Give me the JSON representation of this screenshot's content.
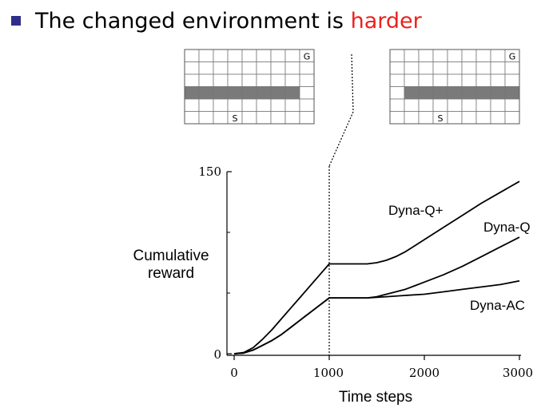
{
  "slide": {
    "title_prefix": "The changed environment is ",
    "title_highlight": "harder",
    "bullet_color": "#2e2e8a",
    "highlight_color": "#e8231e"
  },
  "mazes": [
    {
      "rows": 6,
      "cols": 9,
      "goal_label": "G",
      "start_label": "S",
      "goal_cell": [
        0,
        8
      ],
      "start_cell": [
        5,
        3
      ],
      "wall_row": 3,
      "wall_cols": [
        0,
        1,
        2,
        3,
        4,
        5,
        6,
        7
      ]
    },
    {
      "rows": 6,
      "cols": 9,
      "goal_label": "G",
      "start_label": "S",
      "goal_cell": [
        0,
        8
      ],
      "start_cell": [
        5,
        3
      ],
      "wall_row": 3,
      "wall_cols": [
        1,
        2,
        3,
        4,
        5,
        6,
        7,
        8
      ]
    }
  ],
  "chart_data": {
    "type": "line",
    "title": "",
    "xlabel": "Time steps",
    "ylabel_lines": [
      "Cumulative",
      "reward"
    ],
    "xlim": [
      0,
      3000
    ],
    "ylim": [
      0,
      150
    ],
    "xticks": [
      0,
      1000,
      2000,
      3000
    ],
    "yticks": [
      0,
      150
    ],
    "y_minor_ticks": [
      50,
      100
    ],
    "change_point": 1000,
    "grid": false,
    "series": [
      {
        "name": "Dyna-Q+",
        "x": [
          0,
          100,
          200,
          300,
          400,
          500,
          600,
          700,
          800,
          900,
          1000,
          1100,
          1200,
          1300,
          1400,
          1500,
          1600,
          1700,
          1800,
          1900,
          2000,
          2200,
          2400,
          2600,
          2800,
          3000
        ],
        "y": [
          0,
          1,
          5,
          12,
          20,
          29,
          38,
          47,
          56,
          65,
          74,
          74,
          74,
          74,
          74,
          75,
          77,
          80,
          84,
          89,
          94,
          104,
          114,
          124,
          133,
          142
        ]
      },
      {
        "name": "Dyna-Q",
        "x": [
          0,
          100,
          200,
          300,
          400,
          500,
          600,
          700,
          800,
          900,
          1000,
          1100,
          1200,
          1300,
          1400,
          1500,
          1600,
          1700,
          1800,
          1900,
          2000,
          2200,
          2400,
          2600,
          2800,
          3000
        ],
        "y": [
          0,
          0.5,
          3,
          7,
          11,
          16,
          22,
          28,
          34,
          40,
          46,
          46,
          46,
          46,
          46,
          47,
          49,
          51,
          53,
          56,
          59,
          65,
          72,
          80,
          88,
          96
        ]
      },
      {
        "name": "Dyna-AC",
        "x": [
          0,
          100,
          200,
          300,
          400,
          500,
          600,
          700,
          800,
          900,
          1000,
          1200,
          1400,
          1600,
          1800,
          2000,
          2200,
          2400,
          2600,
          2800,
          3000
        ],
        "y": [
          0,
          0.5,
          3,
          7,
          11,
          16,
          22,
          28,
          34,
          40,
          46,
          46,
          46,
          47,
          48,
          49,
          51,
          53,
          55,
          57,
          60
        ]
      }
    ]
  }
}
